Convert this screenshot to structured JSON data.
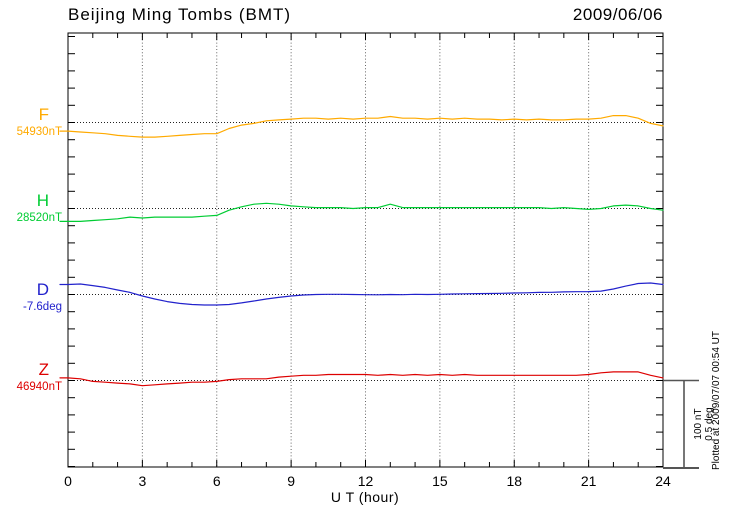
{
  "header": {
    "title": "Beijing Ming Tombs (BMT)",
    "date": "2009/06/06"
  },
  "x_axis": {
    "label": "U T (hour)",
    "tick_labels": [
      "0",
      "3",
      "6",
      "9",
      "12",
      "15",
      "18",
      "21",
      "24"
    ],
    "ticks": [
      0,
      3,
      6,
      9,
      12,
      15,
      18,
      21,
      24
    ],
    "min": 0,
    "max": 24
  },
  "scale_bar": {
    "line1": "100 nT",
    "line2": "0.5 deg"
  },
  "plotted_at": "Plotted at 2009/07/07 00:54 UT",
  "channels": [
    {
      "letter": "F",
      "baseline_label": "54930nT",
      "color": "#FFAA00"
    },
    {
      "letter": "H",
      "baseline_label": "28520nT",
      "color": "#00CC33"
    },
    {
      "letter": "D",
      "baseline_label": "-7.6deg",
      "color": "#2222CC"
    },
    {
      "letter": "Z",
      "baseline_label": "46940nT",
      "color": "#DD0000"
    }
  ],
  "chart_data": {
    "type": "line",
    "title": "Beijing Ming Tombs (BMT)",
    "date": "2009/06/06",
    "xlabel": "U T (hour)",
    "x_range_hours": [
      0,
      24
    ],
    "x_gridline_hours": [
      3,
      6,
      9,
      12,
      15,
      18,
      21
    ],
    "grid": "dotted",
    "scale_per_division": {
      "nT": 100,
      "deg": 0.5
    },
    "x": [
      0,
      0.5,
      1,
      1.5,
      2,
      2.5,
      3,
      3.5,
      4,
      4.5,
      5,
      5.5,
      6,
      6.5,
      7,
      7.5,
      8,
      8.5,
      9,
      9.5,
      10,
      10.5,
      11,
      11.5,
      12,
      12.5,
      13,
      13.5,
      14,
      14.5,
      15,
      15.5,
      16,
      16.5,
      17,
      17.5,
      18,
      18.5,
      19,
      19.5,
      20,
      20.5,
      21,
      21.5,
      22,
      22.5,
      23,
      23.5,
      24
    ],
    "series": [
      {
        "name": "F",
        "unit": "nT",
        "base": 54930,
        "values": [
          54920,
          54919,
          54918,
          54917,
          54915,
          54914,
          54913,
          54913,
          54914,
          54915,
          54916,
          54917,
          54917,
          54923,
          54927,
          54929,
          54932,
          54933,
          54934,
          54935,
          54935,
          54934,
          54935,
          54934,
          54935,
          54935,
          54937,
          54935,
          54935,
          54934,
          54935,
          54934,
          54935,
          54934,
          54934,
          54933,
          54934,
          54933,
          54934,
          54933,
          54933,
          54934,
          54934,
          54935,
          54938,
          54938,
          54935,
          54929,
          54926
        ]
      },
      {
        "name": "H",
        "unit": "nT",
        "base": 28520,
        "values": [
          28505,
          28505,
          28506,
          28507,
          28508,
          28510,
          28509,
          28510,
          28510,
          28510,
          28510,
          28511,
          28512,
          28518,
          28522,
          28525,
          28526,
          28525,
          28523,
          28522,
          28521,
          28521,
          28521,
          28520,
          28521,
          28521,
          28525,
          28521,
          28521,
          28521,
          28521,
          28521,
          28521,
          28521,
          28521,
          28521,
          28521,
          28521,
          28521,
          28520,
          28521,
          28520,
          28519,
          28520,
          28523,
          28524,
          28523,
          28520,
          28518
        ]
      },
      {
        "name": "D",
        "unit": "deg",
        "base": -7.6,
        "values": [
          -7.542,
          -7.539,
          -7.548,
          -7.559,
          -7.574,
          -7.588,
          -7.609,
          -7.626,
          -7.641,
          -7.652,
          -7.658,
          -7.661,
          -7.661,
          -7.658,
          -7.649,
          -7.638,
          -7.626,
          -7.617,
          -7.609,
          -7.603,
          -7.6,
          -7.599,
          -7.599,
          -7.6,
          -7.601,
          -7.602,
          -7.6,
          -7.601,
          -7.599,
          -7.6,
          -7.599,
          -7.597,
          -7.596,
          -7.595,
          -7.594,
          -7.593,
          -7.591,
          -7.59,
          -7.588,
          -7.587,
          -7.585,
          -7.584,
          -7.583,
          -7.58,
          -7.568,
          -7.551,
          -7.536,
          -7.533,
          -7.542
        ]
      },
      {
        "name": "Z",
        "unit": "nT",
        "base": 46940,
        "values": [
          46943,
          46942,
          46939,
          46938,
          46937,
          46936,
          46934,
          46935,
          46936,
          46937,
          46938,
          46938,
          46939,
          46941,
          46942,
          46942,
          46942,
          46944,
          46945,
          46946,
          46946,
          46947,
          46947,
          46947,
          46947,
          46946,
          46947,
          46946,
          46947,
          46946,
          46947,
          46946,
          46947,
          46946,
          46946,
          46946,
          46946,
          46946,
          46946,
          46946,
          46946,
          46946,
          46947,
          46949,
          46950,
          46950,
          46950,
          46946,
          46943
        ]
      }
    ]
  }
}
